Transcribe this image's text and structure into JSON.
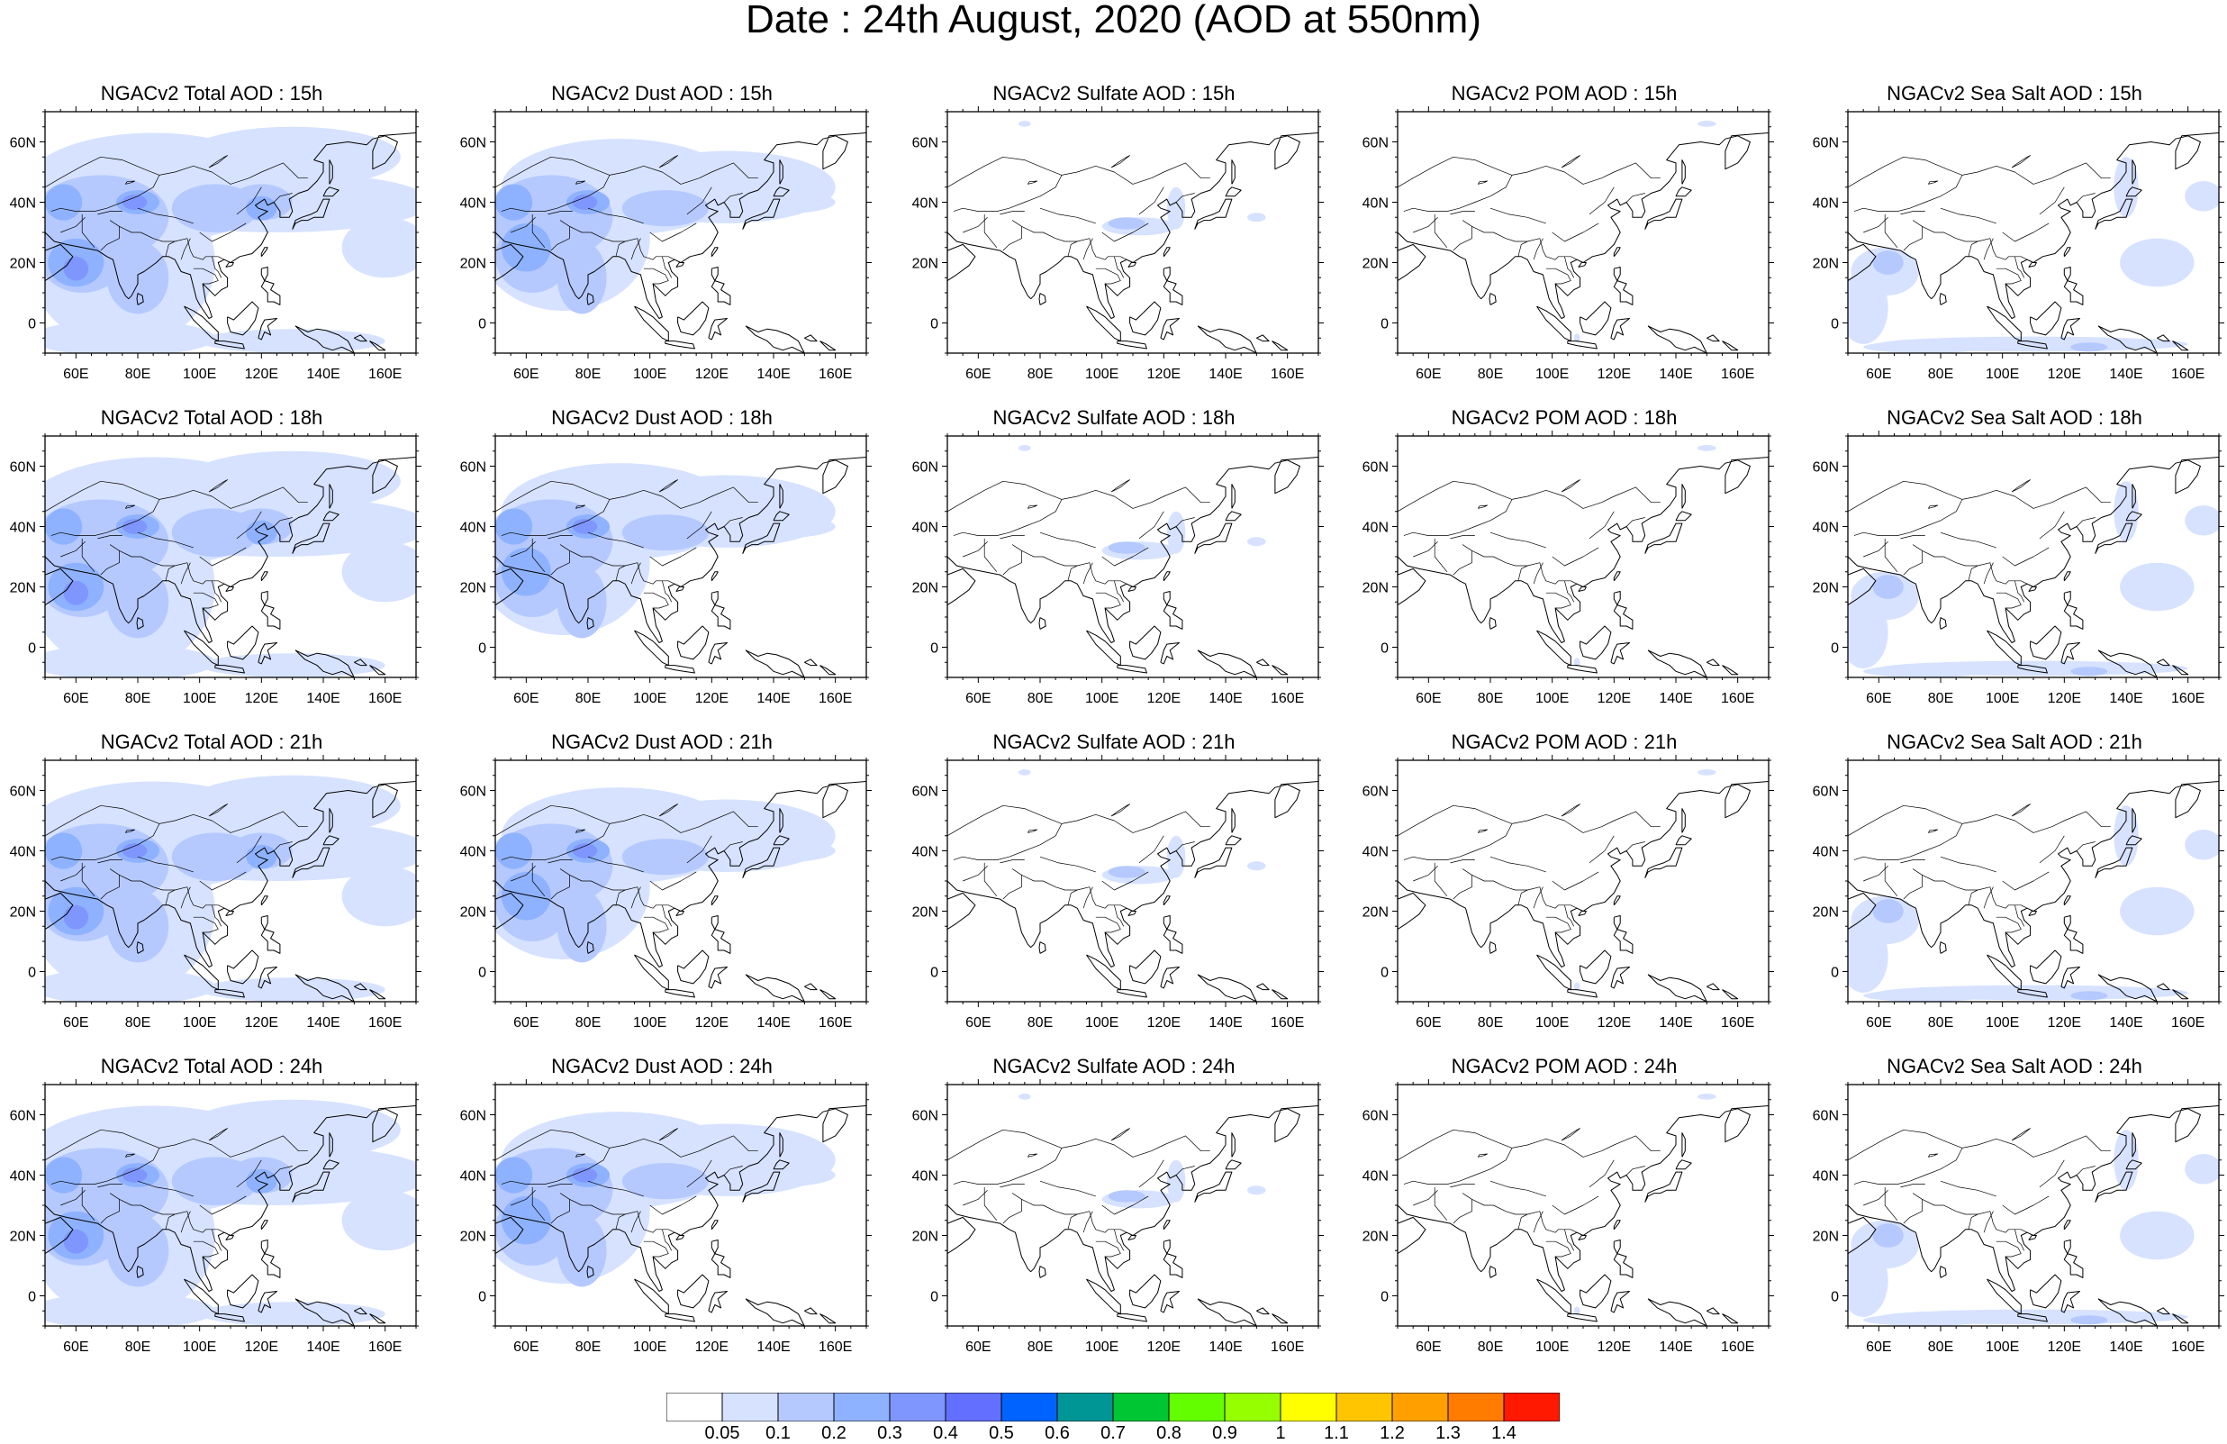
{
  "title": "Date : 24th August, 2020 (AOD at 550nm)",
  "axes": {
    "x_ticks": [
      "60E",
      "80E",
      "100E",
      "120E",
      "140E",
      "160E"
    ],
    "y_ticks": [
      "60N",
      "40N",
      "20N",
      "0"
    ],
    "lon_range": [
      50,
      170
    ],
    "lat_range": [
      -10,
      70
    ]
  },
  "panels": [
    {
      "title": "NGACv2 Total AOD : 15h",
      "variable": "total"
    },
    {
      "title": "NGACv2 Dust AOD : 15h",
      "variable": "dust"
    },
    {
      "title": "NGACv2 Sulfate AOD : 15h",
      "variable": "sulfate"
    },
    {
      "title": "NGACv2 POM AOD : 15h",
      "variable": "pom"
    },
    {
      "title": "NGACv2 Sea Salt AOD : 15h",
      "variable": "seasalt"
    },
    {
      "title": "NGACv2 Total AOD : 18h",
      "variable": "total"
    },
    {
      "title": "NGACv2 Dust AOD : 18h",
      "variable": "dust"
    },
    {
      "title": "NGACv2 Sulfate AOD : 18h",
      "variable": "sulfate"
    },
    {
      "title": "NGACv2 POM AOD : 18h",
      "variable": "pom"
    },
    {
      "title": "NGACv2 Sea Salt AOD : 18h",
      "variable": "seasalt"
    },
    {
      "title": "NGACv2 Total AOD : 21h",
      "variable": "total"
    },
    {
      "title": "NGACv2 Dust AOD : 21h",
      "variable": "dust"
    },
    {
      "title": "NGACv2 Sulfate AOD : 21h",
      "variable": "sulfate"
    },
    {
      "title": "NGACv2 POM AOD : 21h",
      "variable": "pom"
    },
    {
      "title": "NGACv2 Sea Salt AOD : 21h",
      "variable": "seasalt"
    },
    {
      "title": "NGACv2 Total AOD : 24h",
      "variable": "total"
    },
    {
      "title": "NGACv2 Dust AOD : 24h",
      "variable": "dust"
    },
    {
      "title": "NGACv2 Sulfate AOD : 24h",
      "variable": "sulfate"
    },
    {
      "title": "NGACv2 POM AOD : 24h",
      "variable": "pom"
    },
    {
      "title": "NGACv2 Sea Salt  AOD : 24h",
      "variable": "seasalt"
    }
  ],
  "colorbar": {
    "labels": [
      "0.05",
      "0.1",
      "0.2",
      "0.3",
      "0.4",
      "0.5",
      "0.6",
      "0.7",
      "0.8",
      "0.9",
      "1",
      "1.1",
      "1.2",
      "1.3",
      "1.4"
    ],
    "colors": [
      "#ffffff",
      "#d6e2ff",
      "#b5c9ff",
      "#8eb2ff",
      "#7f96ff",
      "#6370ff",
      "#0063ff",
      "#009696",
      "#00c633",
      "#63ff00",
      "#96ff00",
      "#ffff00",
      "#ffc600",
      "#ffa000",
      "#ff7c00",
      "#ff1900"
    ]
  }
}
